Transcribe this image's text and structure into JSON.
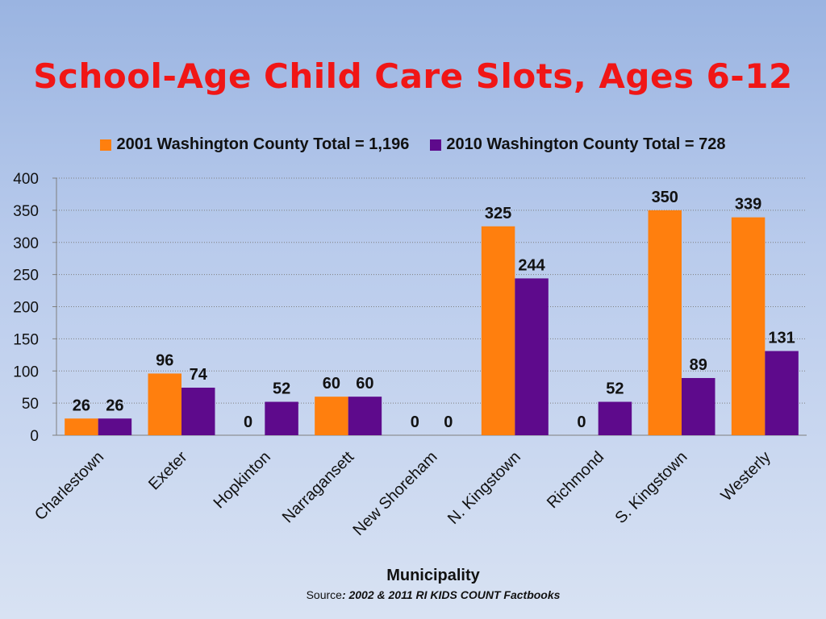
{
  "chart_data": {
    "type": "bar",
    "title": "School-Age Child Care Slots, Ages 6-12",
    "xlabel": "Municipality",
    "ylabel": "",
    "ylim": [
      0,
      400
    ],
    "yticks": [
      0,
      50,
      100,
      150,
      200,
      250,
      300,
      350,
      400
    ],
    "grid": true,
    "legend_position": "top",
    "categories": [
      "Charlestown",
      "Exeter",
      "Hopkinton",
      "Narragansett",
      "New Shoreham",
      "N. Kingstown",
      "Richmond",
      "S. Kingstown",
      "Westerly"
    ],
    "series": [
      {
        "name": "2001 Washington County Total = 1,196",
        "color": "#ff7f0e",
        "values": [
          26,
          96,
          0,
          60,
          0,
          325,
          0,
          350,
          339
        ]
      },
      {
        "name": "2010 Washington County Total = 728",
        "color": "#5e0a8c",
        "values": [
          26,
          74,
          52,
          60,
          0,
          244,
          52,
          89,
          131
        ]
      }
    ]
  },
  "source": {
    "prefix": "Source",
    "text": ": 2002 & 2011 RI KIDS COUNT Factbooks"
  }
}
